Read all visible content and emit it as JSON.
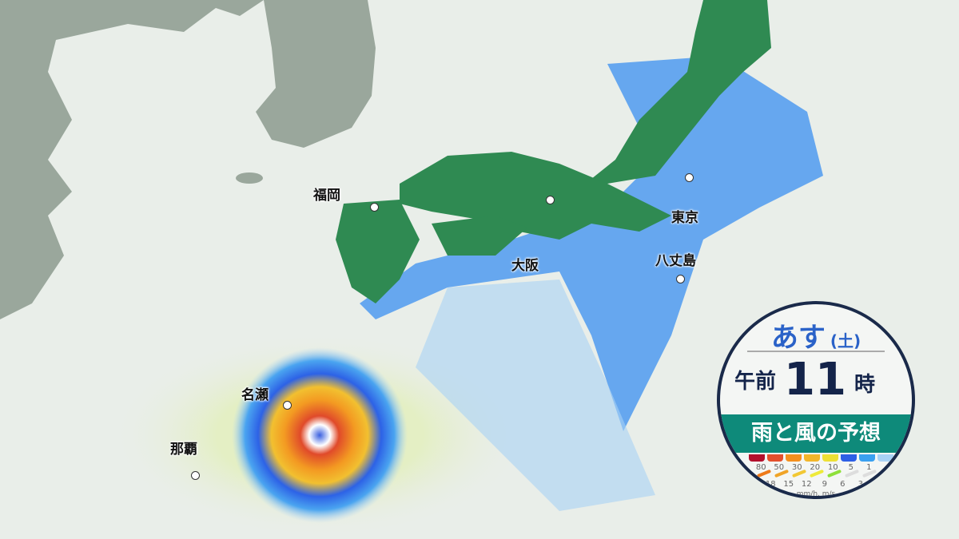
{
  "cities": [
    {
      "name": "福岡"
    },
    {
      "name": "大阪"
    },
    {
      "name": "東京"
    },
    {
      "name": "八丈島"
    },
    {
      "name": "名瀬"
    },
    {
      "name": "那覇"
    }
  ],
  "badge": {
    "day": "あす",
    "weekday": "(土)",
    "ampm": "午前",
    "hour": "11",
    "hour_suffix": "時",
    "title": "雨と風の予想",
    "rain_legend": {
      "values": [
        "80",
        "50",
        "30",
        "20",
        "10",
        "5",
        "1"
      ],
      "colors": [
        "#b3102c",
        "#e4502c",
        "#f4901e",
        "#f2b62a",
        "#ede034",
        "#2d5fe6",
        "#3aa0f0",
        "#a9d2f5"
      ]
    },
    "wind_legend": {
      "values": [
        "18",
        "15",
        "12",
        "9",
        "6",
        "3"
      ],
      "colors": [
        "#ee7a1a",
        "#f0a428",
        "#f2c834",
        "#eeea3a",
        "#8ee03a",
        "#dddddd",
        "#dddddd"
      ]
    },
    "unit": "mm/h, m/s"
  },
  "colors": {
    "land_japan": "#2f8a52",
    "land_continent": "#9aa79c",
    "sea": "#e9eee9",
    "rain": "#3a8ff0"
  }
}
